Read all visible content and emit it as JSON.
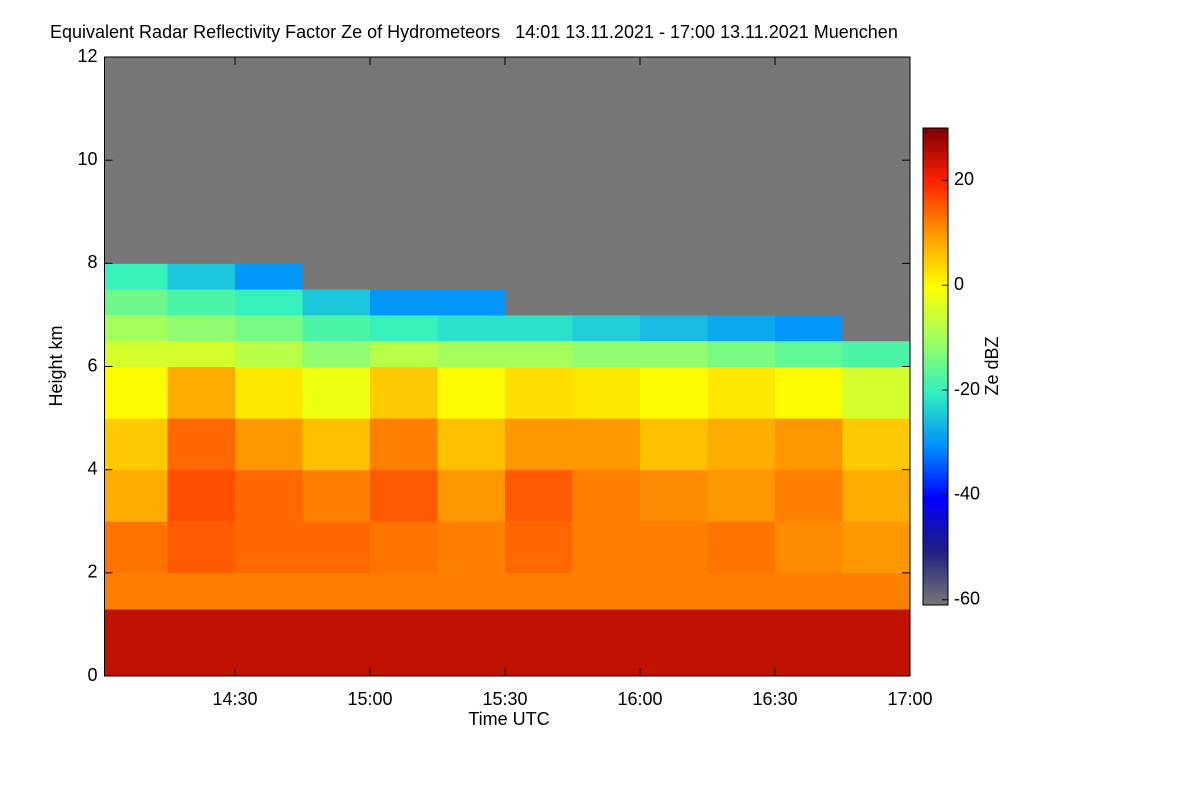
{
  "chart_data": {
    "type": "heatmap",
    "title": "Equivalent Radar Reflectivity Factor Ze of Hydrometeors   14:01 13.11.2021 - 17:00 13.11.2021 Muenchen",
    "x_label": "Time UTC",
    "y_label": "Height km",
    "colorbar_label": "Ze dBZ",
    "xlim": [
      841,
      1020
    ],
    "xticks": [
      {
        "value": 870,
        "label": "14:30"
      },
      {
        "value": 900,
        "label": "15:00"
      },
      {
        "value": 930,
        "label": "15:30"
      },
      {
        "value": 960,
        "label": "16:00"
      },
      {
        "value": 990,
        "label": "16:30"
      },
      {
        "value": 1020,
        "label": "17:00"
      }
    ],
    "ylim": [
      0,
      12
    ],
    "yticks": [
      0,
      2,
      4,
      6,
      8,
      10,
      12
    ],
    "clim": [
      -61,
      30
    ],
    "cticks": [
      -60,
      -40,
      -20,
      0,
      20
    ],
    "colormap": [
      "#777777",
      "#202080",
      "#0000ff",
      "#0090ff",
      "#30f0c0",
      "#a0ff60",
      "#ffff00",
      "#ff9a00",
      "#ff2000",
      "#800000"
    ],
    "x_edges": [
      841,
      855,
      870,
      885,
      900,
      915,
      930,
      945,
      960,
      975,
      990,
      1005,
      1020
    ],
    "y_edges": [
      0,
      1.3,
      2,
      3,
      4,
      5,
      6,
      6.5,
      7,
      7.5,
      8,
      12
    ],
    "z": [
      [
        25,
        25,
        25,
        25,
        25,
        25,
        25,
        25,
        25,
        25,
        25,
        25
      ],
      [
        12,
        12,
        12,
        12,
        12,
        12,
        12,
        12,
        12,
        12,
        12,
        12
      ],
      [
        13,
        15,
        14,
        14,
        13,
        12,
        14,
        12,
        12,
        13,
        11,
        10
      ],
      [
        8,
        16,
        14,
        12,
        15,
        10,
        15,
        12,
        11,
        10,
        12,
        8
      ],
      [
        5,
        14,
        10,
        6,
        12,
        6,
        10,
        10,
        6,
        8,
        10,
        5
      ],
      [
        0,
        8,
        2,
        -2,
        5,
        0,
        3,
        2,
        0,
        2,
        0,
        -5
      ],
      [
        -5,
        -5,
        -8,
        -12,
        -8,
        -10,
        -10,
        -12,
        -12,
        -14,
        -16,
        -18
      ],
      [
        -10,
        -12,
        -14,
        -18,
        -20,
        -22,
        -22,
        -24,
        -26,
        -28,
        -30,
        -61
      ],
      [
        -15,
        -18,
        -20,
        -25,
        -30,
        -30,
        -61,
        -61,
        -61,
        -61,
        -61,
        -61
      ],
      [
        -20,
        -25,
        -30,
        -61,
        -61,
        -61,
        -61,
        -61,
        -61,
        -61,
        -61,
        -61
      ],
      [
        -61,
        -61,
        -61,
        -61,
        -61,
        -61,
        -61,
        -61,
        -61,
        -61,
        -61,
        -61
      ]
    ]
  }
}
